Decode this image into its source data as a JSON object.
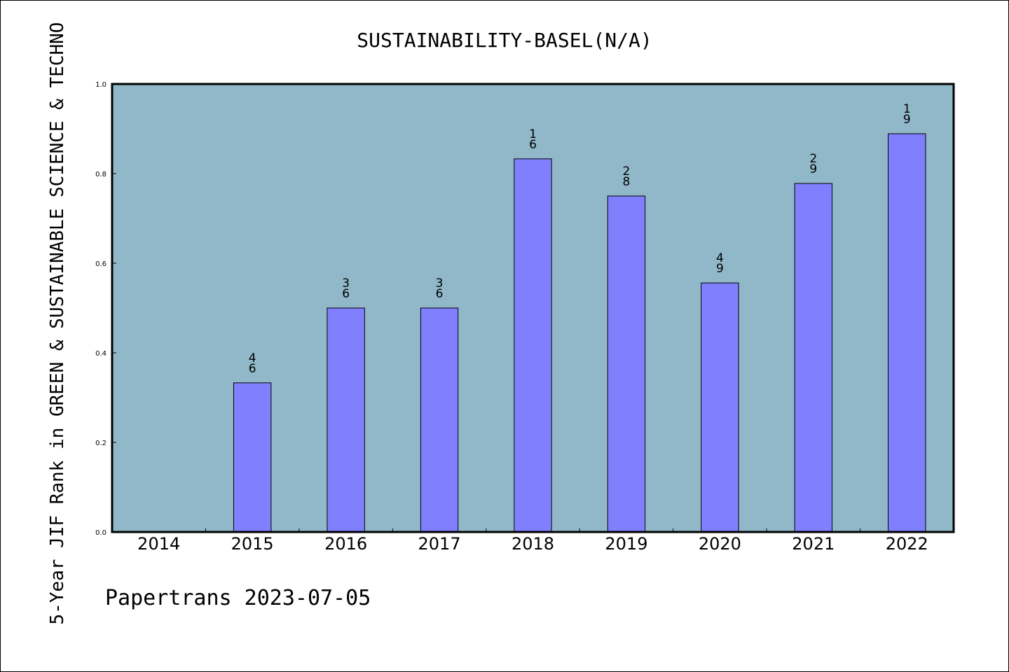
{
  "chart_data": {
    "type": "bar",
    "title": "SUSTAINABILITY-BASEL(N/A)",
    "ylabel": "5-Year JIF Rank in GREEN & SUSTAINABLE SCIENCE & TECHNO",
    "xlabel": "",
    "categories": [
      "2014",
      "2015",
      "2016",
      "2017",
      "2018",
      "2019",
      "2020",
      "2021",
      "2022"
    ],
    "values": [
      null,
      0.333,
      0.5,
      0.5,
      0.833,
      0.75,
      0.556,
      0.778,
      0.889
    ],
    "bar_labels": [
      null,
      [
        "4",
        "6"
      ],
      [
        "3",
        "6"
      ],
      [
        "3",
        "6"
      ],
      [
        "1",
        "6"
      ],
      [
        "2",
        "8"
      ],
      [
        "4",
        "9"
      ],
      [
        "2",
        "9"
      ],
      [
        "1",
        "9"
      ]
    ],
    "ylim": [
      0,
      1.0
    ],
    "yticks": [
      "0.0",
      "0.2",
      "0.4",
      "0.6",
      "0.8",
      "1.0"
    ],
    "grid": false,
    "colors": {
      "plot_background": "#90b8c8",
      "bar_fill": "#8080ff",
      "bar_stroke": "#000000"
    }
  },
  "footer": "Papertrans 2023-07-05"
}
